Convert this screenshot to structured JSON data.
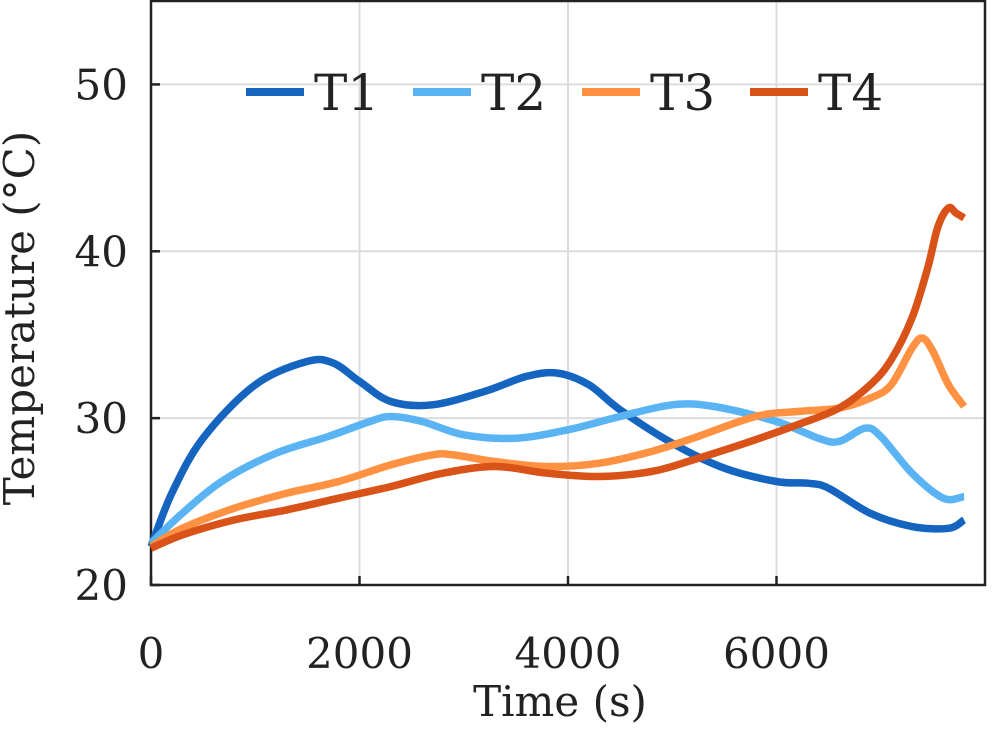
{
  "chart_data": {
    "type": "line",
    "xlabel": "Time (s)",
    "ylabel": "Temperature (°C)",
    "xlim": [
      0,
      8000
    ],
    "ylim": [
      20,
      55
    ],
    "xticks": [
      0,
      2000,
      4000,
      6000
    ],
    "yticks": [
      20,
      30,
      40,
      50
    ],
    "grid": true,
    "legend": {
      "placement": "top",
      "orientation": "horizontal"
    },
    "series": [
      {
        "name": "T1",
        "color": "#1565C0",
        "x": [
          0,
          200,
          500,
          1000,
          1500,
          1750,
          2000,
          2300,
          2700,
          3200,
          3600,
          3900,
          4200,
          4500,
          5000,
          5500,
          6000,
          6300,
          6500,
          6900,
          7300,
          7650,
          7800
        ],
        "y": [
          22.3,
          25.5,
          28.8,
          32.0,
          33.4,
          33.3,
          32.2,
          31.0,
          30.8,
          31.6,
          32.5,
          32.7,
          32.0,
          30.5,
          28.5,
          27.0,
          26.2,
          26.1,
          25.8,
          24.3,
          23.5,
          23.4,
          23.9
        ]
      },
      {
        "name": "T2",
        "color": "#5AB4F4",
        "x": [
          0,
          300,
          700,
          1200,
          1700,
          2100,
          2300,
          2600,
          3000,
          3500,
          4000,
          4500,
          5000,
          5400,
          6000,
          6400,
          6600,
          6850,
          7000,
          7300,
          7600,
          7800
        ],
        "y": [
          22.5,
          24.3,
          26.3,
          27.9,
          28.9,
          29.8,
          30.1,
          29.8,
          29.0,
          28.8,
          29.3,
          30.1,
          30.8,
          30.7,
          29.8,
          28.8,
          28.6,
          29.4,
          28.9,
          26.7,
          25.2,
          25.3
        ]
      },
      {
        "name": "T3",
        "color": "#FF9142",
        "x": [
          0,
          300,
          800,
          1300,
          1800,
          2300,
          2700,
          2900,
          3300,
          3800,
          4300,
          4800,
          5200,
          5800,
          6200,
          6600,
          6900,
          7100,
          7300,
          7400,
          7500,
          7650,
          7800
        ],
        "y": [
          22.3,
          23.4,
          24.6,
          25.5,
          26.2,
          27.2,
          27.8,
          27.8,
          27.4,
          27.1,
          27.3,
          28.0,
          28.8,
          30.1,
          30.4,
          30.6,
          31.2,
          32.0,
          34.2,
          34.8,
          34.0,
          32.0,
          30.7
        ]
      },
      {
        "name": "T4",
        "color": "#D95319",
        "x": [
          0,
          300,
          800,
          1300,
          1800,
          2300,
          2800,
          3300,
          3800,
          4300,
          4800,
          5200,
          5700,
          6200,
          6600,
          6900,
          7100,
          7300,
          7450,
          7550,
          7650,
          7720,
          7800
        ],
        "y": [
          22.2,
          23.0,
          23.9,
          24.5,
          25.2,
          25.9,
          26.7,
          27.1,
          26.7,
          26.5,
          26.8,
          27.5,
          28.5,
          29.6,
          30.6,
          32.0,
          33.5,
          36.0,
          39.0,
          41.5,
          42.6,
          42.3,
          42.0
        ]
      }
    ]
  }
}
